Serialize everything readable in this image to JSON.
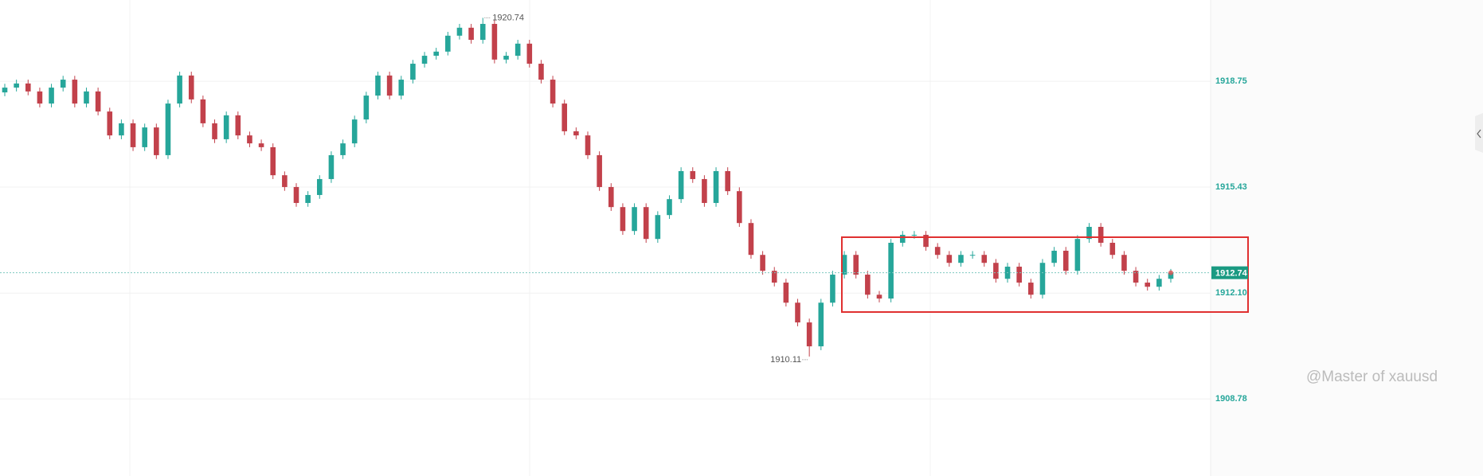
{
  "chart_data": {
    "type": "candlestick",
    "ylim": [
      1906.36,
      1921.3
    ],
    "yticks": [
      1918.75,
      1915.43,
      {
        "value": 1912.1,
        "label": "1912.10"
      },
      1908.78
    ],
    "grid": true,
    "up_color": "#26a69a",
    "down_color": "#c2414b",
    "last_price": 1912.74,
    "high_label": 1920.74,
    "low_label": 1910.11,
    "watermark": "@Master of xauusd",
    "candles": [
      [
        1918.4,
        1918.67,
        1918.28,
        1918.55
      ],
      [
        1918.55,
        1918.8,
        1918.43,
        1918.68
      ],
      [
        1918.68,
        1918.8,
        1918.31,
        1918.43
      ],
      [
        1918.43,
        1918.55,
        1917.93,
        1918.05
      ],
      [
        1918.05,
        1918.67,
        1917.93,
        1918.55
      ],
      [
        1918.55,
        1918.92,
        1918.43,
        1918.8
      ],
      [
        1918.8,
        1918.92,
        1917.93,
        1918.05
      ],
      [
        1918.05,
        1918.55,
        1917.93,
        1918.43
      ],
      [
        1918.43,
        1918.55,
        1917.68,
        1917.8
      ],
      [
        1917.8,
        1917.92,
        1916.93,
        1917.05
      ],
      [
        1917.05,
        1917.55,
        1916.93,
        1917.43
      ],
      [
        1917.43,
        1917.55,
        1916.56,
        1916.68
      ],
      [
        1916.68,
        1917.42,
        1916.56,
        1917.3
      ],
      [
        1917.3,
        1917.42,
        1916.31,
        1916.43
      ],
      [
        1916.43,
        1918.17,
        1916.31,
        1918.05
      ],
      [
        1918.05,
        1919.05,
        1917.93,
        1918.93
      ],
      [
        1918.93,
        1919.05,
        1918.06,
        1918.18
      ],
      [
        1918.18,
        1918.3,
        1917.31,
        1917.43
      ],
      [
        1917.43,
        1917.55,
        1916.81,
        1916.93
      ],
      [
        1916.93,
        1917.8,
        1916.81,
        1917.68
      ],
      [
        1917.68,
        1917.8,
        1916.93,
        1917.05
      ],
      [
        1917.05,
        1917.17,
        1916.68,
        1916.8
      ],
      [
        1916.8,
        1916.92,
        1916.56,
        1916.68
      ],
      [
        1916.68,
        1916.8,
        1915.68,
        1915.8
      ],
      [
        1915.8,
        1915.92,
        1915.31,
        1915.43
      ],
      [
        1915.43,
        1915.55,
        1914.81,
        1914.93
      ],
      [
        1914.93,
        1915.3,
        1914.81,
        1915.18
      ],
      [
        1915.18,
        1915.8,
        1915.06,
        1915.68
      ],
      [
        1915.68,
        1916.55,
        1915.56,
        1916.43
      ],
      [
        1916.43,
        1916.92,
        1916.31,
        1916.8
      ],
      [
        1916.8,
        1917.67,
        1916.68,
        1917.55
      ],
      [
        1917.55,
        1918.42,
        1917.43,
        1918.3
      ],
      [
        1918.3,
        1919.05,
        1918.18,
        1918.93
      ],
      [
        1918.93,
        1919.05,
        1918.18,
        1918.3
      ],
      [
        1918.3,
        1918.92,
        1918.18,
        1918.8
      ],
      [
        1918.8,
        1919.42,
        1918.68,
        1919.3
      ],
      [
        1919.3,
        1919.67,
        1919.18,
        1919.55
      ],
      [
        1919.55,
        1919.8,
        1919.43,
        1919.68
      ],
      [
        1919.68,
        1920.3,
        1919.56,
        1920.18
      ],
      [
        1920.18,
        1920.55,
        1920.06,
        1920.43
      ],
      [
        1920.43,
        1920.55,
        1919.93,
        1920.05
      ],
      [
        1920.05,
        1920.74,
        1919.93,
        1920.55
      ],
      [
        1920.55,
        1920.67,
        1919.31,
        1919.43
      ],
      [
        1919.43,
        1919.67,
        1919.31,
        1919.55
      ],
      [
        1919.55,
        1920.05,
        1919.43,
        1919.93
      ],
      [
        1919.93,
        1920.05,
        1919.18,
        1919.3
      ],
      [
        1919.3,
        1919.42,
        1918.68,
        1918.8
      ],
      [
        1918.8,
        1918.92,
        1917.93,
        1918.05
      ],
      [
        1918.05,
        1918.17,
        1917.06,
        1917.18
      ],
      [
        1917.18,
        1917.3,
        1916.93,
        1917.05
      ],
      [
        1917.05,
        1917.17,
        1916.31,
        1916.43
      ],
      [
        1916.43,
        1916.55,
        1915.31,
        1915.43
      ],
      [
        1915.43,
        1915.55,
        1914.68,
        1914.8
      ],
      [
        1914.8,
        1914.92,
        1913.93,
        1914.05
      ],
      [
        1914.05,
        1914.92,
        1913.93,
        1914.8
      ],
      [
        1914.8,
        1914.92,
        1913.68,
        1913.8
      ],
      [
        1913.8,
        1914.67,
        1913.68,
        1914.55
      ],
      [
        1914.55,
        1915.17,
        1914.43,
        1915.05
      ],
      [
        1915.05,
        1916.05,
        1914.93,
        1915.93
      ],
      [
        1915.93,
        1916.05,
        1915.56,
        1915.68
      ],
      [
        1915.68,
        1915.8,
        1914.81,
        1914.93
      ],
      [
        1914.93,
        1916.05,
        1914.81,
        1915.93
      ],
      [
        1915.93,
        1916.05,
        1915.18,
        1915.3
      ],
      [
        1915.3,
        1915.42,
        1914.18,
        1914.3
      ],
      [
        1914.3,
        1914.42,
        1913.18,
        1913.3
      ],
      [
        1913.3,
        1913.42,
        1912.68,
        1912.8
      ],
      [
        1912.8,
        1912.92,
        1912.31,
        1912.43
      ],
      [
        1912.43,
        1912.55,
        1911.68,
        1911.8
      ],
      [
        1911.8,
        1911.92,
        1911.06,
        1911.18
      ],
      [
        1911.18,
        1911.3,
        1910.11,
        1910.43
      ],
      [
        1910.43,
        1911.92,
        1910.31,
        1911.8
      ],
      [
        1911.8,
        1912.8,
        1911.68,
        1912.68
      ],
      [
        1912.68,
        1913.42,
        1912.56,
        1913.3
      ],
      [
        1913.3,
        1913.42,
        1912.56,
        1912.68
      ],
      [
        1912.68,
        1912.8,
        1911.93,
        1912.05
      ],
      [
        1912.05,
        1912.17,
        1911.81,
        1911.93
      ],
      [
        1911.93,
        1913.8,
        1911.81,
        1913.68
      ],
      [
        1913.68,
        1914.05,
        1913.56,
        1913.93
      ],
      [
        1913.93,
        1914.05,
        1913.81,
        1913.93
      ],
      [
        1913.93,
        1914.05,
        1913.43,
        1913.55
      ],
      [
        1913.55,
        1913.67,
        1913.18,
        1913.3
      ],
      [
        1913.3,
        1913.42,
        1912.93,
        1913.05
      ],
      [
        1913.05,
        1913.42,
        1912.93,
        1913.3
      ],
      [
        1913.3,
        1913.42,
        1913.18,
        1913.3
      ],
      [
        1913.3,
        1913.42,
        1912.93,
        1913.05
      ],
      [
        1913.05,
        1913.17,
        1912.43,
        1912.55
      ],
      [
        1912.55,
        1913.05,
        1912.43,
        1912.93
      ],
      [
        1912.93,
        1913.05,
        1912.31,
        1912.43
      ],
      [
        1912.43,
        1912.55,
        1911.93,
        1912.05
      ],
      [
        1912.05,
        1913.17,
        1911.93,
        1913.05
      ],
      [
        1913.05,
        1913.55,
        1912.93,
        1913.43
      ],
      [
        1913.43,
        1913.55,
        1912.68,
        1912.8
      ],
      [
        1912.8,
        1913.92,
        1912.68,
        1913.8
      ],
      [
        1913.8,
        1914.3,
        1913.68,
        1914.18
      ],
      [
        1914.18,
        1914.3,
        1913.56,
        1913.68
      ],
      [
        1913.68,
        1913.8,
        1913.18,
        1913.3
      ],
      [
        1913.3,
        1913.42,
        1912.68,
        1912.8
      ],
      [
        1912.8,
        1912.92,
        1912.31,
        1912.43
      ],
      [
        1912.43,
        1912.55,
        1912.18,
        1912.3
      ],
      [
        1912.3,
        1912.67,
        1912.18,
        1912.55
      ],
      [
        1912.55,
        1912.86,
        1912.43,
        1912.74
      ]
    ]
  }
}
